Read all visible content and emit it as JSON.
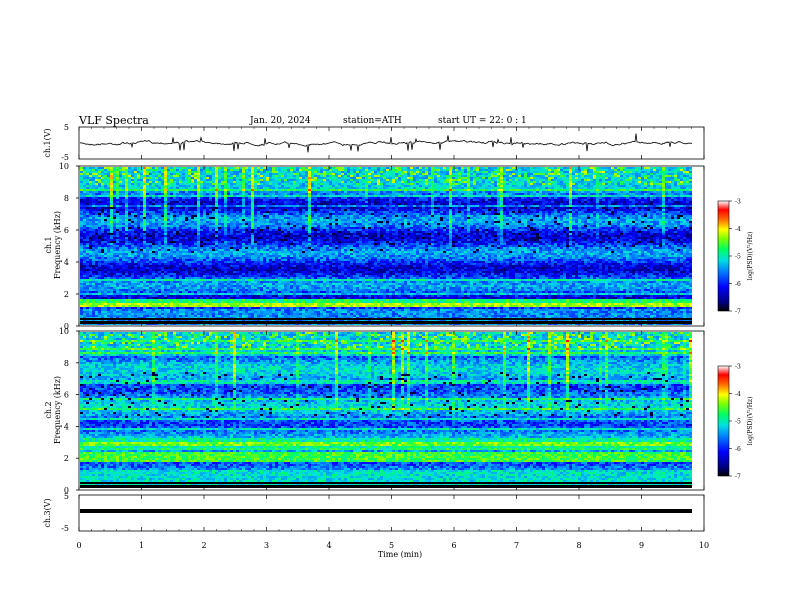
{
  "header": {
    "title": "VLF  Spectra",
    "date": "Jan. 20, 2024",
    "station": "station=ATH",
    "start": "start  UT  =   22: 0   : 1"
  },
  "chart_data": [
    {
      "type": "line",
      "panel": "ch1-waveform",
      "ylabel": "ch.1(V)",
      "yticks": [
        "5",
        "-5"
      ],
      "ylim": [
        -5,
        5
      ],
      "xlim": [
        0,
        10
      ],
      "series": [
        {
          "description_source": "waveform",
          "values_hint": "noise around ~0 V"
        }
      ]
    },
    {
      "type": "heatmap",
      "panel": "ch1-spectrogram",
      "ylabel": "ch.1\nFrequency  (kHz)",
      "ylabel_line1": "ch.1",
      "ylabel_line2": "Frequency  (kHz)",
      "yticks": [
        "0",
        "2",
        "4",
        "6",
        "8",
        "10"
      ],
      "ylim": [
        0,
        10
      ],
      "xlim": [
        0,
        10
      ],
      "colorbar": {
        "label": "log(PSD)(V²/Hz)",
        "ticks": [
          "-3",
          "-4",
          "-5",
          "-6",
          "-7"
        ],
        "range": [
          -7,
          -3
        ]
      }
    },
    {
      "type": "heatmap",
      "panel": "ch2-spectrogram",
      "ylabel_line1": "ch.2",
      "ylabel_line2": "Frequency  (kHz)",
      "yticks": [
        "0",
        "2",
        "4",
        "6",
        "8",
        "10"
      ],
      "ylim": [
        0,
        10
      ],
      "xlim": [
        0,
        10
      ],
      "colorbar": {
        "label": "log(PSD)(V²/Hz)",
        "ticks": [
          "-3",
          "-4",
          "-5",
          "-6",
          "-7"
        ],
        "range": [
          -7,
          -3
        ]
      }
    },
    {
      "type": "line",
      "panel": "ch3-waveform",
      "ylabel": "ch.3(V)",
      "yticks": [
        "5",
        "-5"
      ],
      "ylim": [
        -5,
        5
      ],
      "xlim": [
        0,
        10
      ],
      "series": [
        {
          "values_hint": "flat"
        }
      ]
    }
  ],
  "xaxis": {
    "label": "Time  (min)",
    "ticks": [
      "0",
      "1",
      "2",
      "3",
      "4",
      "5",
      "6",
      "7",
      "8",
      "9",
      "10"
    ]
  },
  "colors": {
    "colormap": [
      "#000000",
      "#000070",
      "#0000ff",
      "#0080ff",
      "#00d0ff",
      "#00ff80",
      "#40ff00",
      "#ffff00",
      "#ff8000",
      "#ff0000",
      "#ffffff"
    ]
  }
}
